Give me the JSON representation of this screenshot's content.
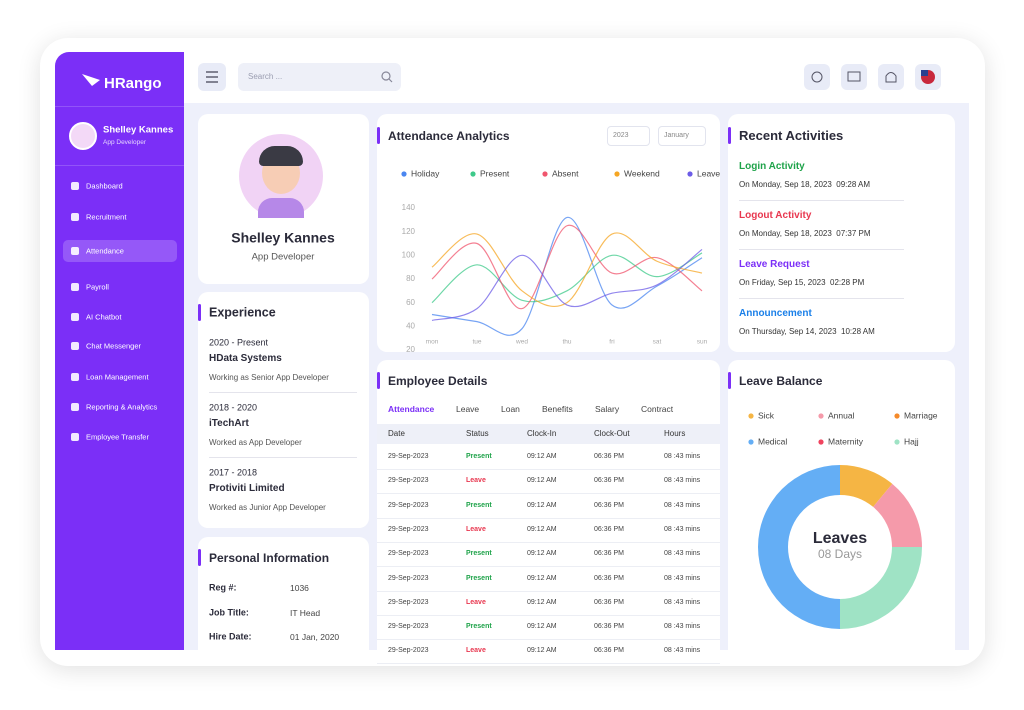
{
  "sidebar": {
    "logo": "HRango",
    "user": {
      "name": "Shelley Kannes",
      "role": "App Developer"
    },
    "menu": [
      {
        "label": "Dashboard",
        "active": false
      },
      {
        "label": "Recruitment",
        "active": false
      },
      {
        "label": "Attendance",
        "active": true
      },
      {
        "label": "Payroll",
        "active": false
      },
      {
        "label": "AI Chatbot",
        "active": false
      },
      {
        "label": "Chat Messenger",
        "active": false
      },
      {
        "label": "Loan Management",
        "active": false
      },
      {
        "label": "Reporting & Analytics",
        "active": false
      },
      {
        "label": "Employee Transfer",
        "active": false
      }
    ]
  },
  "header": {
    "search_placeholder": "Search ..."
  },
  "profile": {
    "name": "Shelley Kannes",
    "role": "App Developer"
  },
  "experience": {
    "title": "Experience",
    "items": [
      {
        "period": "2020 - Present",
        "company": "HData Systems",
        "role": "Working as Senior App Developer"
      },
      {
        "period": "2018 - 2020",
        "company": "iTechArt",
        "role": "Worked as App Developer"
      },
      {
        "period": "2017 - 2018",
        "company": "Protiviti Limited",
        "role": "Worked as Junior App Developer"
      }
    ]
  },
  "personal_information": {
    "title": "Personal Information",
    "rows": [
      {
        "label": "Reg #:",
        "value": "1036"
      },
      {
        "label": "Job Title:",
        "value": "IT Head"
      },
      {
        "label": "Hire Date:",
        "value": "01 Jan, 2020"
      }
    ]
  },
  "recent_activities": {
    "title": "Recent Activities",
    "items": [
      {
        "title": "Login Activity",
        "color": "#1fa34a",
        "date": "On Monday, Sep 18, 2023  09:28 AM"
      },
      {
        "title": "Logout Activity",
        "color": "#e8374f",
        "date": "On Monday, Sep 18, 2023  07:37 PM"
      },
      {
        "title": "Leave Request",
        "color": "#7b2ff7",
        "date": "On Friday, Sep 15, 2023  02:28 PM"
      },
      {
        "title": "Announcement",
        "color": "#1a7fe8",
        "date": "On Thursday, Sep 14, 2023  10:28 AM"
      }
    ]
  },
  "employee_details": {
    "title": "Employee Details",
    "tabs": [
      {
        "label": "Attendance",
        "active": true
      },
      {
        "label": "Leave",
        "active": false
      },
      {
        "label": "Loan",
        "active": false
      },
      {
        "label": "Benefits",
        "active": false
      },
      {
        "label": "Salary",
        "active": false
      },
      {
        "label": "Contract",
        "active": false
      }
    ],
    "columns": [
      "Date",
      "Status",
      "Clock-In",
      "Clock-Out",
      "Hours"
    ],
    "status_colors": {
      "Present": "#1fa34a",
      "Leave": "#e8374f"
    },
    "rows": [
      [
        "29-Sep-2023",
        "Present",
        "09:12 AM",
        "06:36 PM",
        "08 :43 mins"
      ],
      [
        "29-Sep-2023",
        "Leave",
        "09:12 AM",
        "06:36 PM",
        "08 :43 mins"
      ],
      [
        "29-Sep-2023",
        "Present",
        "09:12 AM",
        "06:36 PM",
        "08 :43 mins"
      ],
      [
        "29-Sep-2023",
        "Leave",
        "09:12 AM",
        "06:36 PM",
        "08 :43 mins"
      ],
      [
        "29-Sep-2023",
        "Present",
        "09:12 AM",
        "06:36 PM",
        "08 :43 mins"
      ],
      [
        "29-Sep-2023",
        "Present",
        "09:12 AM",
        "06:36 PM",
        "08 :43 mins"
      ],
      [
        "29-Sep-2023",
        "Leave",
        "09:12 AM",
        "06:36 PM",
        "08 :43 mins"
      ],
      [
        "29-Sep-2023",
        "Present",
        "09:12 AM",
        "06:36 PM",
        "08 :43 mins"
      ],
      [
        "29-Sep-2023",
        "Leave",
        "09:12 AM",
        "06:36 PM",
        "08 :43 mins"
      ]
    ]
  },
  "chart_data": [
    {
      "type": "line",
      "title": "Attendance Analytics",
      "filters": [
        "2023",
        "January"
      ],
      "categories": [
        "mon",
        "tue",
        "wed",
        "thu",
        "fri",
        "sat",
        "sun"
      ],
      "series": [
        {
          "name": "Holiday",
          "color": "#4a86f0",
          "values": [
            50,
            44,
            38,
            132,
            58,
            74,
            98
          ]
        },
        {
          "name": "Present",
          "color": "#3ec98a",
          "values": [
            60,
            92,
            62,
            70,
            100,
            82,
            102
          ]
        },
        {
          "name": "Absent",
          "color": "#f0566e",
          "values": [
            80,
            110,
            55,
            125,
            85,
            98,
            70
          ]
        },
        {
          "name": "Weekend",
          "color": "#f5a623",
          "values": [
            90,
            118,
            70,
            60,
            118,
            95,
            85
          ]
        },
        {
          "name": "Leave",
          "color": "#6c5ce7",
          "values": [
            45,
            55,
            100,
            58,
            68,
            75,
            105
          ]
        }
      ],
      "ylim": [
        20,
        140
      ],
      "yticks": [
        20,
        40,
        60,
        80,
        100,
        120,
        140
      ],
      "grid": false
    },
    {
      "type": "pie",
      "title": "Leave Balance",
      "center_title": "Leaves",
      "center_subtitle": "08 Days",
      "categories": [
        "Sick",
        "Annual",
        "Marriage",
        "Medical",
        "Maternity",
        "Hajj"
      ],
      "values": [
        11,
        14,
        0,
        50,
        0,
        25
      ],
      "colors": [
        "#f5b544",
        "#f59aaa",
        "#f58a2a",
        "#64aef5",
        "#f0435e",
        "#9fe3c5"
      ]
    }
  ]
}
